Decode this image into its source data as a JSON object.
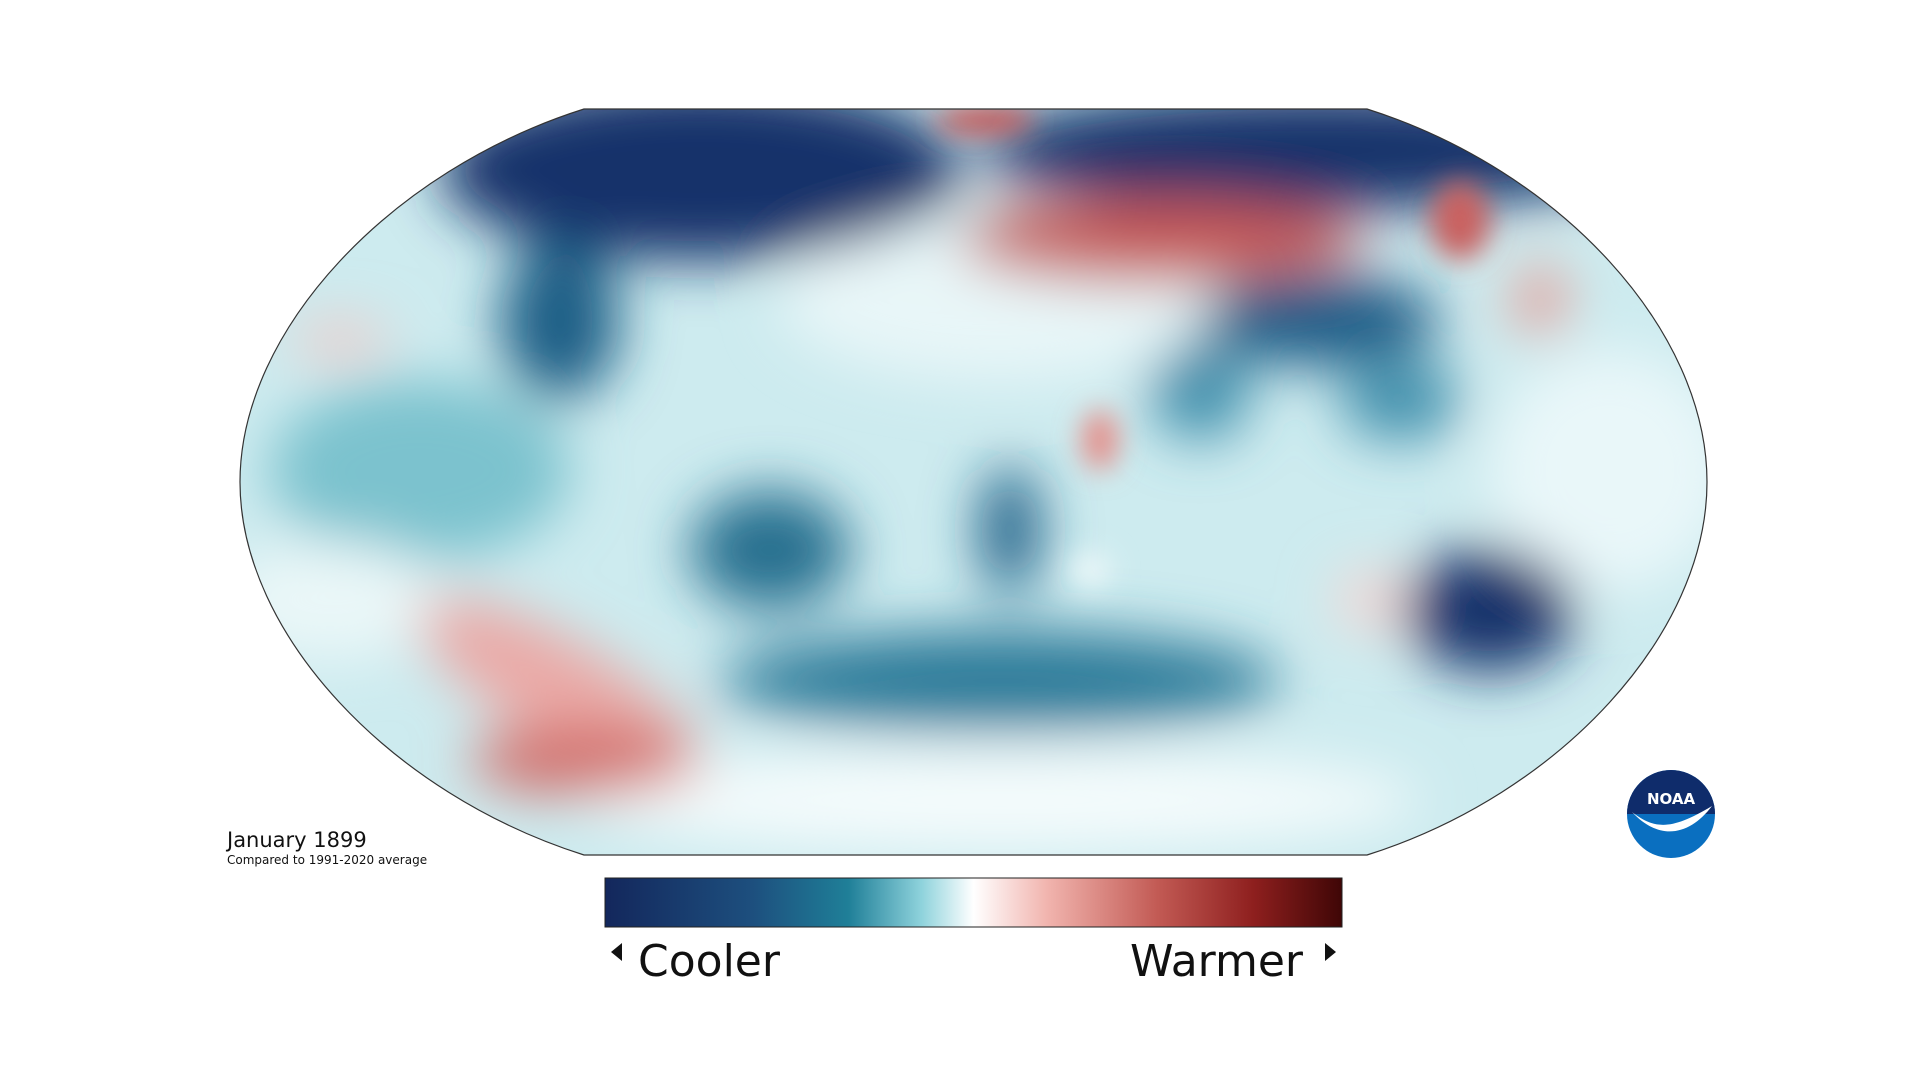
{
  "caption": {
    "title": "January 1899",
    "subtitle": "Compared to 1991-2020 average"
  },
  "legend": {
    "low": "Cooler",
    "high": "Warmer"
  },
  "logo": {
    "text": "NOAA"
  }
}
